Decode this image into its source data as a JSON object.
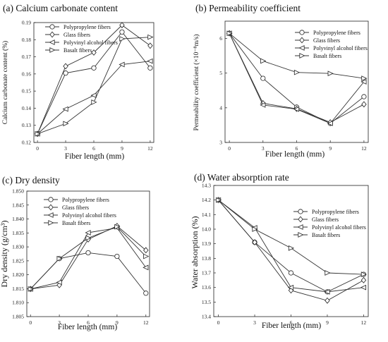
{
  "chart_data": [
    {
      "type": "line",
      "title": "(a) Calcium carbonate content",
      "xlabel": "Fiber length (mm)",
      "ylabel": "Calcium carbonate content (%)",
      "x": [
        0,
        3,
        6,
        9,
        12
      ],
      "ylim": [
        0.12,
        0.19
      ],
      "yticks": [
        "0.12",
        "0.13",
        "0.14",
        "0.15",
        "0.16",
        "0.17",
        "0.18",
        "0.19"
      ],
      "legend_position": "top-left",
      "series": [
        {
          "name": "Polypropylene fibers",
          "marker": "circle",
          "values": [
            0.125,
            0.1605,
            0.1635,
            0.1845,
            0.1635
          ]
        },
        {
          "name": "Glass fibers",
          "marker": "diamond",
          "values": [
            0.125,
            0.1645,
            0.1725,
            0.1885,
            0.1765
          ]
        },
        {
          "name": "Polyvinyl alcohol fibers",
          "marker": "tri-left",
          "values": [
            0.125,
            0.1395,
            0.1475,
            0.1655,
            0.1675
          ]
        },
        {
          "name": "Basalt fibers",
          "marker": "tri-right",
          "values": [
            0.125,
            0.131,
            0.1435,
            0.1805,
            0.1815
          ]
        }
      ]
    },
    {
      "type": "line",
      "title": "(b) Permeability coefficient",
      "xlabel": "Fiber length (mm)",
      "ylabel": "Permeability coefficient (×10⁻⁸m/s)",
      "x": [
        0,
        3,
        6,
        9,
        12
      ],
      "ylim": [
        3,
        6.5
      ],
      "yticks": [
        "3",
        "4",
        "5",
        "6"
      ],
      "legend_position": "top-right",
      "series": [
        {
          "name": "Polypropylene fibers",
          "marker": "circle",
          "values": [
            6.15,
            4.85,
            4.02,
            3.55,
            4.32
          ]
        },
        {
          "name": "Glass fibers",
          "marker": "diamond",
          "values": [
            6.15,
            4.13,
            3.97,
            3.58,
            4.1
          ]
        },
        {
          "name": "Polyvinyl alcohol fibers",
          "marker": "tri-left",
          "values": [
            6.15,
            4.08,
            3.96,
            3.55,
            4.75
          ]
        },
        {
          "name": "Basalt fibers",
          "marker": "tri-right",
          "values": [
            6.15,
            5.35,
            5.02,
            4.99,
            4.85
          ]
        }
      ]
    },
    {
      "type": "line",
      "title": "(c) Dry density",
      "xlabel": "Fiber length (mm)",
      "ylabel": "Dry density (g/cm³)",
      "x": [
        0,
        3,
        6,
        9,
        12
      ],
      "ylim": [
        1.805,
        1.85
      ],
      "yticks": [
        "1.805",
        "1.810",
        "1.815",
        "1.820",
        "1.825",
        "1.830",
        "1.835",
        "1.840",
        "1.845",
        "1.850"
      ],
      "legend_position": "top-left",
      "series": [
        {
          "name": "Polypropylene fibers",
          "marker": "circle",
          "values": [
            1.8149,
            1.8258,
            1.8279,
            1.8266,
            1.8134
          ]
        },
        {
          "name": "Glass fibers",
          "marker": "diamond",
          "values": [
            1.8149,
            1.8163,
            1.8327,
            1.8375,
            1.8288
          ]
        },
        {
          "name": "Polyvinyl alcohol fibers",
          "marker": "tri-left",
          "values": [
            1.8149,
            1.8173,
            1.8351,
            1.8368,
            1.8226
          ]
        },
        {
          "name": "Basalt fibers",
          "marker": "tri-right",
          "values": [
            1.8149,
            1.8258,
            1.8332,
            1.8372,
            1.8266
          ]
        }
      ]
    },
    {
      "type": "line",
      "title": "(d) Water absorption rate",
      "xlabel": "Fiber length (mm)",
      "ylabel": "Water absorption (%)",
      "x": [
        0,
        3,
        6,
        9,
        12
      ],
      "ylim": [
        13.4,
        14.3
      ],
      "yticks": [
        "13.4",
        "13.5",
        "13.6",
        "13.7",
        "13.8",
        "13.9",
        "14.0",
        "14.1",
        "14.2",
        "14.3"
      ],
      "legend_position": "top-right",
      "series": [
        {
          "name": "Polypropylene fibers",
          "marker": "circle",
          "values": [
            14.2,
            13.91,
            13.7,
            13.57,
            13.69
          ]
        },
        {
          "name": "Glass fibers",
          "marker": "diamond",
          "values": [
            14.2,
            13.91,
            13.58,
            13.51,
            13.65
          ]
        },
        {
          "name": "Polyvinyl alcohol fibers",
          "marker": "tri-left",
          "values": [
            14.2,
            14.01,
            13.6,
            13.57,
            13.6
          ]
        },
        {
          "name": "Basalt fibers",
          "marker": "tri-right",
          "values": [
            14.2,
            14.0,
            13.87,
            13.7,
            13.69
          ]
        }
      ]
    }
  ]
}
